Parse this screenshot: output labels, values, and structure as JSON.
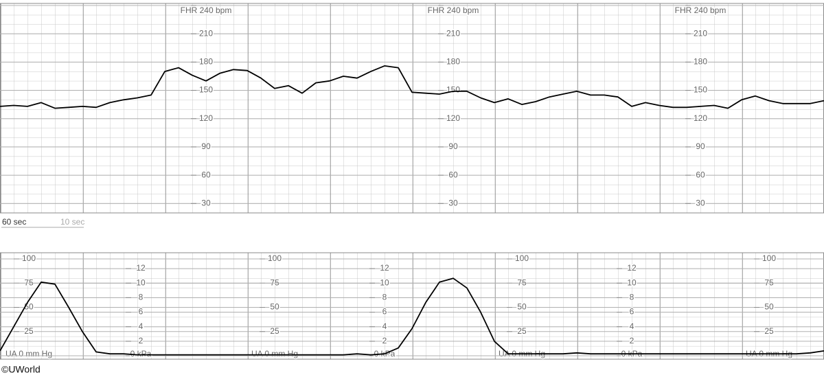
{
  "chart_data": [
    {
      "type": "line",
      "color": "#000000",
      "annotations": [
        "60 sec",
        "10 sec"
      ],
      "xlim": [
        0,
        600
      ],
      "ylim": [
        20,
        240
      ],
      "yticks": [
        30,
        60,
        90,
        120,
        150,
        180,
        210,
        {
          "value": 240,
          "label": "FHR 240 bpm"
        }
      ],
      "x": [
        0,
        10,
        20,
        30,
        40,
        50,
        60,
        70,
        80,
        90,
        100,
        110,
        120,
        130,
        140,
        150,
        160,
        170,
        180,
        190,
        200,
        210,
        220,
        230,
        240,
        250,
        260,
        270,
        280,
        290,
        300,
        310,
        320,
        330,
        340,
        350,
        360,
        370,
        380,
        390,
        400,
        410,
        420,
        430,
        440,
        450,
        460,
        470,
        480,
        490,
        500,
        510,
        520,
        530,
        540,
        550,
        560,
        570,
        580,
        590,
        600
      ],
      "values": [
        133,
        134,
        133,
        137,
        131,
        132,
        133,
        132,
        137,
        140,
        142,
        145,
        170,
        174,
        166,
        160,
        168,
        172,
        171,
        163,
        152,
        155,
        147,
        158,
        160,
        165,
        163,
        170,
        176,
        174,
        148,
        147,
        146,
        149,
        149,
        142,
        137,
        141,
        135,
        138,
        143,
        146,
        149,
        145,
        145,
        143,
        133,
        137,
        134,
        132,
        132,
        133,
        134,
        131,
        140,
        144,
        139,
        136,
        136,
        136,
        139
      ]
    },
    {
      "type": "line",
      "color": "#000000",
      "xlim": [
        0,
        600
      ],
      "ylim": [
        0,
        100
      ],
      "yticks": [
        {
          "value": 0,
          "label": "UA  0 mm Hg"
        },
        25,
        50,
        75,
        100
      ],
      "y2lim": [
        0,
        13.33
      ],
      "y2ticks": [
        {
          "value": 0,
          "label": "0 kPa"
        },
        2,
        4,
        6,
        8,
        10,
        12
      ],
      "x": [
        0,
        10,
        20,
        30,
        40,
        50,
        60,
        70,
        80,
        90,
        100,
        110,
        120,
        130,
        140,
        150,
        160,
        170,
        180,
        190,
        200,
        210,
        220,
        230,
        240,
        250,
        260,
        270,
        280,
        290,
        300,
        310,
        320,
        330,
        340,
        350,
        360,
        370,
        380,
        390,
        400,
        410,
        420,
        430,
        440,
        450,
        460,
        470,
        480,
        490,
        500,
        510,
        520,
        530,
        540,
        550,
        560,
        570,
        580,
        590,
        600
      ],
      "values": [
        5,
        30,
        55,
        76,
        74,
        50,
        25,
        4,
        2,
        2,
        1,
        1,
        1,
        1,
        1,
        1,
        1,
        1,
        1,
        1,
        1,
        1,
        1,
        1,
        1,
        1,
        2,
        1,
        2,
        8,
        28,
        55,
        76,
        80,
        70,
        45,
        15,
        2,
        2,
        2,
        2,
        2,
        3,
        2,
        2,
        2,
        2,
        2,
        2,
        2,
        2,
        2,
        2,
        2,
        2,
        2,
        2,
        2,
        2,
        3,
        5
      ]
    }
  ],
  "credit": "©UWorld"
}
